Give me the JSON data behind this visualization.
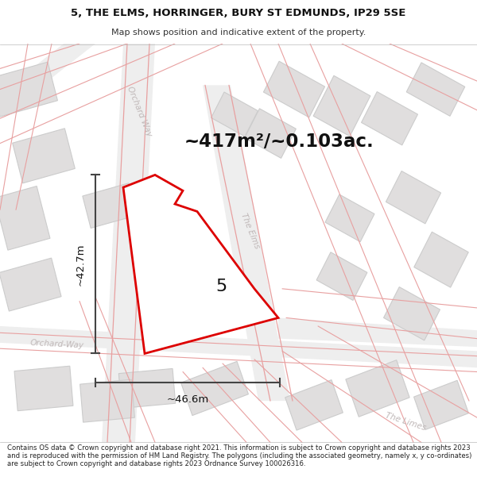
{
  "title_line1": "5, THE ELMS, HORRINGER, BURY ST EDMUNDS, IP29 5SE",
  "title_line2": "Map shows position and indicative extent of the property.",
  "area_text": "~417m²/~0.103ac.",
  "dim_width": "~46.6m",
  "dim_height": "~42.7m",
  "plot_number": "5",
  "footer_text": "Contains OS data © Crown copyright and database right 2021. This information is subject to Crown copyright and database rights 2023 and is reproduced with the permission of HM Land Registry. The polygons (including the associated geometry, namely x, y co-ordinates) are subject to Crown copyright and database rights 2023 Ordnance Survey 100026316.",
  "bg_color": "#ffffff",
  "map_bg": "#ffffff",
  "road_fill": "#e8e8e8",
  "building_fill": "#e0dede",
  "road_line_color": "#e8a0a0",
  "road_line_color2": "#cccccc",
  "plot_line_color": "#dd0000",
  "plot_fill": "#ffffff",
  "dim_line_color": "#444444",
  "street_label_color": "#c0b8b8"
}
